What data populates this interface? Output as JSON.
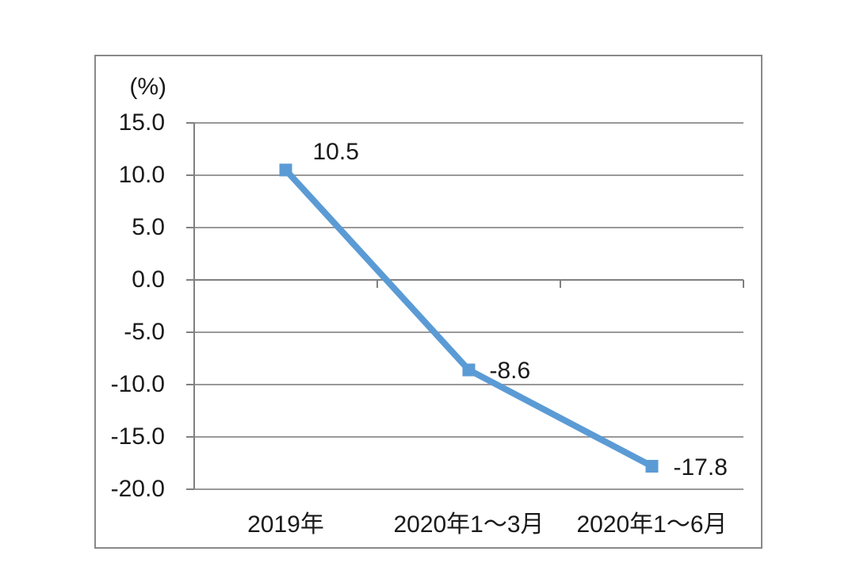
{
  "chart": {
    "unit_label": "(%)"
  },
  "chart_data": {
    "type": "line",
    "title": "",
    "xlabel": "",
    "ylabel": "(%)",
    "categories": [
      "2019年",
      "2020年1～3月",
      "2020年1～6月"
    ],
    "values": [
      10.5,
      -8.6,
      -17.8
    ],
    "data_labels": [
      "10.5",
      "-8.6",
      "-17.8"
    ],
    "y_tick_labels": [
      "15.0",
      "10.0",
      "5.0",
      "0.0",
      "-5.0",
      "-10.0",
      "-15.0",
      "-20.0"
    ],
    "ylim": [
      -20.0,
      15.0
    ],
    "y_step": 5.0,
    "grid": true,
    "legend": "none",
    "marker": "square",
    "colors": {
      "line": "#5B9BD5",
      "marker": "#5B9BD5",
      "gridline": "#999999",
      "axis": "#808080",
      "frame": "#898989",
      "text": "#1a1a1a",
      "background": "#ffffff"
    }
  }
}
